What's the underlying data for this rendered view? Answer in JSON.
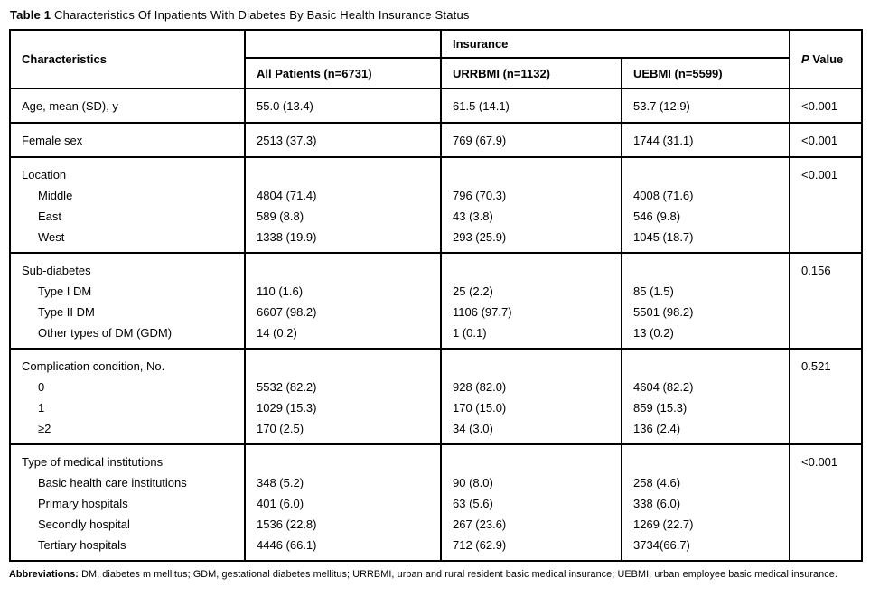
{
  "title": {
    "bold": "Table 1",
    "rest": "Characteristics Of Inpatients With Diabetes By Basic Health Insurance Status"
  },
  "table": {
    "header": {
      "characteristics": "Characteristics",
      "insurance": "Insurance",
      "all_patients": "All Patients (n=6731)",
      "urrbmi": "URRBMI (n=1132)",
      "uebmi": "UEBMI (n=5599)",
      "p_italic": "P",
      "p_rest": "Value"
    },
    "sections": [
      {
        "p": "<0.001",
        "rows": [
          {
            "label": "Age, mean (SD), y",
            "indent": false,
            "all": "55.0 (13.4)",
            "urrbmi": "61.5 (14.1)",
            "uebmi": "53.7 (12.9)"
          }
        ]
      },
      {
        "p": "<0.001",
        "rows": [
          {
            "label": "Female sex",
            "indent": false,
            "all": "2513 (37.3)",
            "urrbmi": "769 (67.9)",
            "uebmi": "1744 (31.1)"
          }
        ]
      },
      {
        "p": "<0.001",
        "rows": [
          {
            "label": "Location",
            "indent": false,
            "all": null,
            "urrbmi": null,
            "uebmi": null
          },
          {
            "label": "Middle",
            "indent": true,
            "all": "4804 (71.4)",
            "urrbmi": "796 (70.3)",
            "uebmi": "4008 (71.6)"
          },
          {
            "label": "East",
            "indent": true,
            "all": "589 (8.8)",
            "urrbmi": "43 (3.8)",
            "uebmi": "546 (9.8)"
          },
          {
            "label": "West",
            "indent": true,
            "all": "1338 (19.9)",
            "urrbmi": "293 (25.9)",
            "uebmi": "1045 (18.7)"
          }
        ]
      },
      {
        "p": "0.156",
        "rows": [
          {
            "label": "Sub-diabetes",
            "indent": false,
            "all": null,
            "urrbmi": null,
            "uebmi": null
          },
          {
            "label": "Type I DM",
            "indent": true,
            "all": "110 (1.6)",
            "urrbmi": "25 (2.2)",
            "uebmi": "85 (1.5)"
          },
          {
            "label": "Type II DM",
            "indent": true,
            "all": "6607 (98.2)",
            "urrbmi": "1106 (97.7)",
            "uebmi": "5501 (98.2)"
          },
          {
            "label": "Other types of DM (GDM)",
            "indent": true,
            "all": "14 (0.2)",
            "urrbmi": "1 (0.1)",
            "uebmi": "13 (0.2)"
          }
        ]
      },
      {
        "p": "0.521",
        "rows": [
          {
            "label": "Complication condition, No.",
            "indent": false,
            "all": null,
            "urrbmi": null,
            "uebmi": null
          },
          {
            "label": "0",
            "indent": true,
            "all": "5532 (82.2)",
            "urrbmi": "928 (82.0)",
            "uebmi": "4604 (82.2)"
          },
          {
            "label": "1",
            "indent": true,
            "all": "1029 (15.3)",
            "urrbmi": "170 (15.0)",
            "uebmi": "859 (15.3)"
          },
          {
            "label": "≥2",
            "indent": true,
            "all": "170 (2.5)",
            "urrbmi": "34 (3.0)",
            "uebmi": "136 (2.4)"
          }
        ]
      },
      {
        "p": "<0.001",
        "rows": [
          {
            "label": "Type of medical institutions",
            "indent": false,
            "all": null,
            "urrbmi": null,
            "uebmi": null
          },
          {
            "label": "Basic health care institutions",
            "indent": true,
            "all": "348 (5.2)",
            "urrbmi": "90 (8.0)",
            "uebmi": "258 (4.6)"
          },
          {
            "label": "Primary hospitals",
            "indent": true,
            "all": "401 (6.0)",
            "urrbmi": "63 (5.6)",
            "uebmi": "338 (6.0)"
          },
          {
            "label": "Secondly hospital",
            "indent": true,
            "all": "1536 (22.8)",
            "urrbmi": "267 (23.6)",
            "uebmi": "1269 (22.7)"
          },
          {
            "label": "Tertiary hospitals",
            "indent": true,
            "all": "4446 (66.1)",
            "urrbmi": "712 (62.9)",
            "uebmi": "3734(66.7)"
          }
        ]
      }
    ]
  },
  "footer": {
    "bold": "Abbreviations:",
    "text": "DM, diabetes m mellitus; GDM, gestational diabetes mellitus; URRBMI, urban and rural resident basic medical insurance; UEBMI, urban employee basic medical insurance."
  }
}
